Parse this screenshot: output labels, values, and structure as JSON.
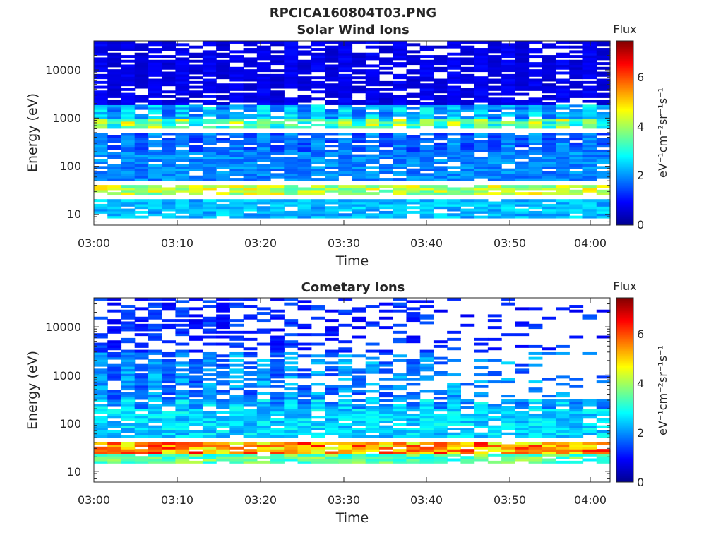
{
  "figure": {
    "title": "RPCICA160804T03.PNG",
    "colormap": "jet"
  },
  "chart_data": [
    {
      "type": "heatmap",
      "title": "Solar Wind Ions",
      "xlabel": "Time",
      "ylabel": "Energy (eV)",
      "x_range": [
        "03:00",
        "04:02"
      ],
      "x_ticks": [
        "03:00",
        "03:10",
        "03:20",
        "03:30",
        "03:40",
        "03:50",
        "04:00"
      ],
      "y_scale": "log",
      "y_range": [
        6,
        40000
      ],
      "y_ticks": [
        10,
        100,
        1000,
        10000
      ],
      "y_tick_labels": [
        "10",
        "100",
        "1000",
        "10000"
      ],
      "colorbar": {
        "label": "Flux",
        "unit": "eV⁻¹cm⁻²sr⁻¹s⁻¹",
        "range": [
          0,
          7.4
        ],
        "ticks": [
          0,
          2,
          4,
          6
        ]
      },
      "bands": [
        {
          "energy_ev": [
            25,
            40
          ],
          "flux": 4.3,
          "note": "bright yellow band"
        },
        {
          "energy_ev": [
            600,
            1000
          ],
          "flux": 4.2,
          "note": "main solar wind peak"
        },
        {
          "energy_ev": [
            1000,
            2000
          ],
          "flux": 2.6
        },
        {
          "energy_ev": [
            8,
            20
          ],
          "flux": 2.4
        },
        {
          "energy_ev": [
            50,
            500
          ],
          "flux": 2.0
        },
        {
          "energy_ev": [
            2000,
            40000
          ],
          "flux": 0.9
        }
      ]
    },
    {
      "type": "heatmap",
      "title": "Cometary Ions",
      "xlabel": "Time",
      "ylabel": "Energy (eV)",
      "x_range": [
        "03:00",
        "04:02"
      ],
      "x_ticks": [
        "03:00",
        "03:10",
        "03:20",
        "03:30",
        "03:40",
        "03:50",
        "04:00"
      ],
      "y_scale": "log",
      "y_range": [
        6,
        40000
      ],
      "y_ticks": [
        10,
        100,
        1000,
        10000
      ],
      "y_tick_labels": [
        "10",
        "100",
        "1000",
        "10000"
      ],
      "colorbar": {
        "label": "Flux",
        "unit": "eV⁻¹cm⁻²sr⁻¹s⁻¹",
        "range": [
          0,
          7.4
        ],
        "ticks": [
          0,
          2,
          4,
          6
        ]
      },
      "bands": [
        {
          "energy_ev": [
            22,
            40
          ],
          "flux": 5.6,
          "note": "strong orange band"
        },
        {
          "energy_ev": [
            15,
            22
          ],
          "flux": 3.6
        },
        {
          "energy_ev": [
            50,
            300
          ],
          "flux": 2.6
        },
        {
          "energy_ev": [
            300,
            3000
          ],
          "flux": 2.2
        },
        {
          "energy_ev": [
            3000,
            40000
          ],
          "flux": 1.4,
          "note": "sparse after 03:38"
        }
      ]
    }
  ]
}
